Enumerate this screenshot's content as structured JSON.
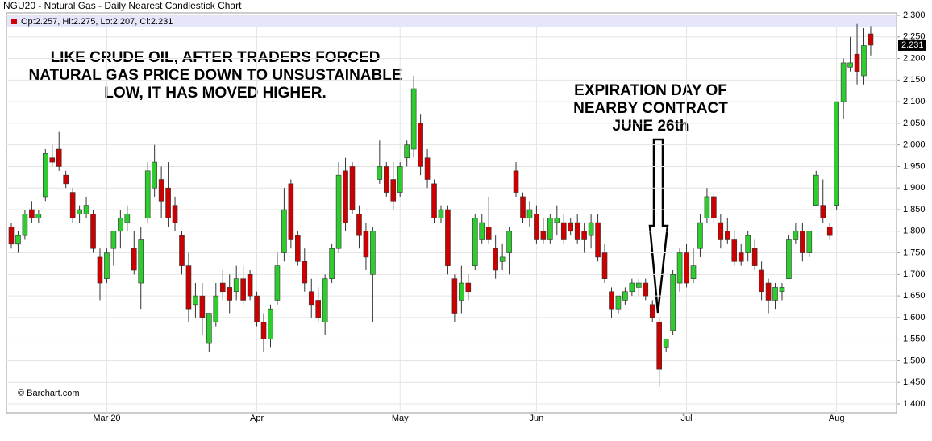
{
  "chart_data": {
    "type": "candlestick",
    "title": "NGU20 - Natural Gas - Daily Nearest Candlestick Chart",
    "legend_text": "Op:2.257, Hi:2.275, Lo:2.207, Cl:2.231",
    "source": "© Barchart.com",
    "annotations": [
      [
        "LIKE CRUDE OIL, AFTER TRADERS FORCED",
        "NATURAL GAS PRICE DOWN TO UNSUSTAINABLE",
        "LOW, IT HAS MOVED HIGHER."
      ],
      [
        "EXPIRATION DAY OF",
        "NEARBY CONTRACT",
        "JUNE 26th"
      ]
    ],
    "up_color": "#2ecc2e",
    "down_color": "#cc0000",
    "grid": true,
    "ylim": [
      1.4,
      2.3
    ],
    "yticks": [
      {
        "value": 1.4,
        "label": "1.400"
      },
      {
        "value": 1.45,
        "label": "1.450"
      },
      {
        "value": 1.5,
        "label": "1.500"
      },
      {
        "value": 1.55,
        "label": "1.550"
      },
      {
        "value": 1.6,
        "label": "1.600"
      },
      {
        "value": 1.65,
        "label": "1.650"
      },
      {
        "value": 1.7,
        "label": "1.700"
      },
      {
        "value": 1.75,
        "label": "1.750"
      },
      {
        "value": 1.8,
        "label": "1.800"
      },
      {
        "value": 1.85,
        "label": "1.850"
      },
      {
        "value": 1.9,
        "label": "1.900"
      },
      {
        "value": 1.95,
        "label": "1.950"
      },
      {
        "value": 2.0,
        "label": "2.000"
      },
      {
        "value": 2.05,
        "label": "2.050"
      },
      {
        "value": 2.1,
        "label": "2.100"
      },
      {
        "value": 2.15,
        "label": "2.150"
      },
      {
        "value": 2.2,
        "label": "2.200"
      },
      {
        "value": 2.25,
        "label": "2.250"
      },
      {
        "value": 2.3,
        "label": "2.300"
      }
    ],
    "categories": [
      null,
      null,
      null,
      null,
      null,
      null,
      null,
      null,
      null,
      null,
      null,
      null,
      null,
      null,
      "Mar 20",
      null,
      null,
      null,
      null,
      null,
      null,
      null,
      null,
      null,
      null,
      null,
      null,
      null,
      null,
      null,
      null,
      null,
      null,
      null,
      null,
      null,
      "Apr",
      null,
      null,
      null,
      null,
      null,
      null,
      null,
      null,
      null,
      null,
      null,
      null,
      null,
      null,
      null,
      null,
      null,
      null,
      null,
      null,
      "May",
      null,
      null,
      null,
      null,
      null,
      null,
      null,
      null,
      null,
      null,
      null,
      null,
      null,
      null,
      null,
      null,
      null,
      null,
      null,
      "Jun",
      null,
      null,
      null,
      null,
      null,
      null,
      null,
      null,
      null,
      null,
      null,
      null,
      null,
      null,
      null,
      null,
      null,
      null,
      null,
      null,
      null,
      "Jul",
      null,
      null,
      null,
      null,
      null,
      null,
      null,
      null,
      null,
      null,
      null,
      null,
      null,
      null,
      null,
      null,
      null,
      null,
      null,
      null,
      null,
      "Aug",
      null,
      null,
      null,
      null,
      null
    ],
    "open": [
      1.81,
      1.77,
      1.79,
      1.85,
      1.83,
      1.88,
      1.97,
      1.99,
      1.93,
      1.89,
      1.84,
      1.84,
      1.84,
      1.74,
      1.69,
      1.76,
      1.8,
      1.82,
      1.76,
      1.68,
      1.83,
      1.9,
      1.92,
      1.9,
      1.86,
      1.79,
      1.72,
      1.63,
      1.65,
      1.54,
      1.59,
      1.68,
      1.67,
      1.66,
      1.69,
      1.7,
      1.65,
      1.59,
      1.55,
      1.64,
      1.75,
      1.91,
      1.79,
      1.73,
      1.66,
      1.64,
      1.59,
      1.69,
      1.76,
      1.94,
      1.95,
      1.84,
      1.8,
      1.7,
      1.92,
      1.95,
      1.92,
      1.89,
      1.97,
      1.99,
      2.05,
      1.97,
      1.91,
      1.83,
      1.85,
      1.69,
      1.64,
      1.68,
      1.72,
      1.78,
      1.81,
      1.76,
      1.73,
      1.75,
      1.94,
      1.88,
      1.83,
      1.84,
      1.8,
      1.78,
      1.82,
      1.82,
      1.82,
      1.82,
      1.8,
      1.79,
      1.82,
      1.75,
      1.66,
      1.62,
      1.64,
      1.66,
      1.67,
      1.68,
      1.63,
      1.59,
      1.53,
      1.57,
      1.68,
      1.75,
      1.69,
      1.76,
      1.83,
      1.88,
      1.82,
      1.8,
      1.78,
      1.75,
      1.75,
      1.76,
      1.71,
      1.68,
      1.64,
      1.66,
      1.69,
      1.78,
      1.8,
      1.75,
      1.86,
      1.86,
      1.81,
      1.86,
      2.1,
      2.18,
      2.21,
      2.16,
      2.257
    ],
    "high": [
      1.82,
      1.8,
      1.85,
      1.87,
      1.85,
      1.99,
      2.0,
      2.03,
      1.94,
      1.9,
      1.86,
      1.88,
      1.85,
      1.76,
      1.76,
      1.8,
      1.85,
      1.86,
      1.8,
      1.81,
      1.96,
      2.0,
      1.95,
      1.96,
      1.88,
      1.8,
      1.75,
      1.68,
      1.68,
      1.61,
      1.68,
      1.71,
      1.7,
      1.72,
      1.72,
      1.71,
      1.66,
      1.61,
      1.63,
      1.75,
      1.9,
      1.92,
      1.8,
      1.76,
      1.69,
      1.67,
      1.7,
      1.77,
      1.96,
      1.97,
      1.96,
      1.86,
      1.82,
      1.81,
      2.01,
      1.96,
      1.96,
      1.96,
      2.01,
      2.16,
      2.07,
      1.99,
      1.92,
      1.86,
      1.86,
      1.7,
      1.72,
      1.7,
      1.84,
      1.84,
      1.88,
      1.79,
      1.77,
      1.81,
      1.96,
      1.89,
      1.87,
      1.86,
      1.83,
      1.84,
      1.86,
      1.84,
      1.83,
      1.84,
      1.82,
      1.84,
      1.84,
      1.77,
      1.67,
      1.65,
      1.67,
      1.69,
      1.69,
      1.69,
      1.64,
      1.6,
      1.55,
      1.71,
      1.76,
      1.77,
      1.76,
      1.84,
      1.9,
      1.89,
      1.84,
      1.83,
      1.8,
      1.77,
      1.8,
      1.78,
      1.73,
      1.69,
      1.68,
      1.68,
      1.79,
      1.82,
      1.82,
      1.8,
      1.94,
      1.92,
      1.82,
      2.1,
      2.2,
      2.25,
      2.28,
      2.27,
      2.275
    ],
    "low": [
      1.76,
      1.75,
      1.78,
      1.82,
      1.82,
      1.87,
      1.95,
      1.94,
      1.9,
      1.82,
      1.82,
      1.83,
      1.75,
      1.64,
      1.68,
      1.72,
      1.76,
      1.8,
      1.7,
      1.62,
      1.82,
      1.88,
      1.83,
      1.81,
      1.8,
      1.7,
      1.59,
      1.6,
      1.56,
      1.52,
      1.58,
      1.64,
      1.61,
      1.64,
      1.63,
      1.64,
      1.58,
      1.52,
      1.53,
      1.63,
      1.73,
      1.76,
      1.72,
      1.66,
      1.6,
      1.59,
      1.56,
      1.68,
      1.75,
      1.8,
      1.84,
      1.76,
      1.71,
      1.59,
      1.91,
      1.88,
      1.85,
      1.88,
      1.95,
      1.97,
      1.93,
      1.9,
      1.82,
      1.82,
      1.7,
      1.59,
      1.61,
      1.64,
      1.71,
      1.77,
      1.77,
      1.69,
      1.71,
      1.7,
      1.88,
      1.82,
      1.81,
      1.77,
      1.77,
      1.77,
      1.79,
      1.77,
      1.79,
      1.77,
      1.75,
      1.76,
      1.73,
      1.68,
      1.6,
      1.61,
      1.63,
      1.65,
      1.65,
      1.64,
      1.59,
      1.44,
      1.52,
      1.56,
      1.66,
      1.67,
      1.68,
      1.74,
      1.82,
      1.82,
      1.76,
      1.77,
      1.72,
      1.72,
      1.73,
      1.71,
      1.64,
      1.61,
      1.62,
      1.64,
      1.69,
      1.77,
      1.73,
      1.74,
      1.86,
      1.82,
      1.78,
      1.85,
      2.06,
      2.17,
      2.14,
      2.14,
      2.207
    ],
    "close": [
      1.77,
      1.79,
      1.84,
      1.83,
      1.84,
      1.98,
      1.96,
      1.95,
      1.91,
      1.83,
      1.85,
      1.86,
      1.76,
      1.68,
      1.75,
      1.8,
      1.83,
      1.84,
      1.71,
      1.78,
      1.94,
      1.96,
      1.87,
      1.83,
      1.82,
      1.72,
      1.62,
      1.65,
      1.6,
      1.61,
      1.65,
      1.66,
      1.64,
      1.69,
      1.64,
      1.65,
      1.59,
      1.55,
      1.62,
      1.72,
      1.85,
      1.78,
      1.73,
      1.68,
      1.63,
      1.6,
      1.69,
      1.76,
      1.93,
      1.82,
      1.85,
      1.79,
      1.74,
      1.8,
      1.95,
      1.89,
      1.87,
      1.95,
      2.0,
      2.13,
      1.95,
      1.92,
      1.83,
      1.85,
      1.72,
      1.61,
      1.68,
      1.66,
      1.83,
      1.82,
      1.78,
      1.71,
      1.74,
      1.8,
      1.89,
      1.83,
      1.85,
      1.78,
      1.78,
      1.83,
      1.83,
      1.78,
      1.8,
      1.78,
      1.78,
      1.82,
      1.74,
      1.69,
      1.62,
      1.65,
      1.66,
      1.68,
      1.68,
      1.65,
      1.6,
      1.48,
      1.55,
      1.7,
      1.75,
      1.68,
      1.72,
      1.82,
      1.88,
      1.83,
      1.78,
      1.78,
      1.73,
      1.73,
      1.79,
      1.72,
      1.66,
      1.64,
      1.67,
      1.67,
      1.78,
      1.8,
      1.75,
      1.8,
      1.93,
      1.83,
      1.79,
      2.1,
      2.19,
      2.19,
      2.17,
      2.23,
      2.231
    ]
  }
}
